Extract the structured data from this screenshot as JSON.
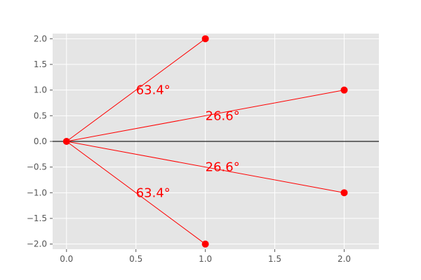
{
  "chart_data": {
    "type": "line",
    "title": "",
    "xlabel": "",
    "ylabel": "",
    "xlim": [
      -0.1,
      2.25
    ],
    "ylim": [
      -2.1,
      2.1
    ],
    "xticks": [
      0.0,
      0.5,
      1.0,
      1.5,
      2.0
    ],
    "yticks": [
      -2.0,
      -1.5,
      -1.0,
      -0.5,
      0.0,
      0.5,
      1.0,
      1.5,
      2.0
    ],
    "xtick_labels": [
      "0.0",
      "0.5",
      "1.0",
      "1.5",
      "2.0"
    ],
    "ytick_labels": [
      "−2.0",
      "−1.5",
      "−1.0",
      "−0.5",
      "0.0",
      "0.5",
      "1.0",
      "1.5",
      "2.0"
    ],
    "grid": true,
    "origin": [
      0,
      0
    ],
    "segments": [
      {
        "to": [
          1,
          2
        ]
      },
      {
        "to": [
          2,
          1
        ]
      },
      {
        "to": [
          2,
          -1
        ]
      },
      {
        "to": [
          1,
          -2
        ]
      }
    ],
    "horizontal_line_y": 0,
    "annotations": [
      {
        "text": "63.4°",
        "x": 0.5,
        "y": 1.0
      },
      {
        "text": "26.6°",
        "x": 1.0,
        "y": 0.5
      },
      {
        "text": "26.6°",
        "x": 1.0,
        "y": -0.5
      },
      {
        "text": "63.4°",
        "x": 0.5,
        "y": -1.0
      }
    ],
    "colors": {
      "series": "#ff0000",
      "background": "#e5e5e5",
      "grid": "#ffffff",
      "hline": "#222222",
      "tick_text": "#555555"
    }
  }
}
